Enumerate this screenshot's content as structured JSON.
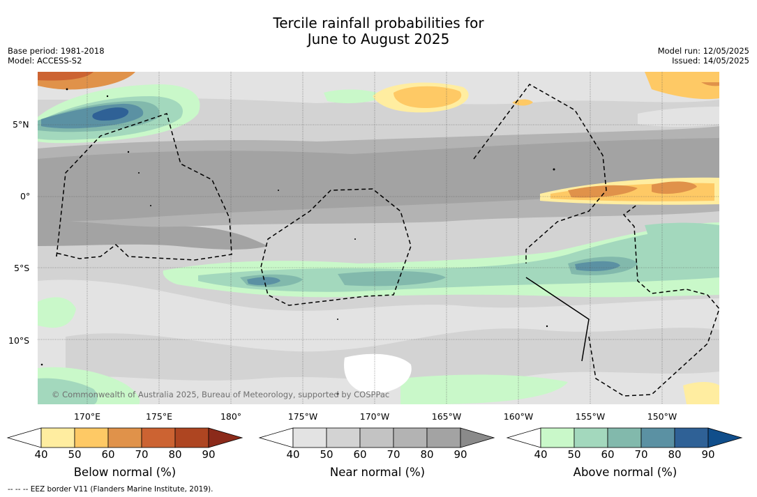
{
  "title_line1": "Tercile rainfall probabilities for",
  "title_line2": "June to August 2025",
  "base_period": "Base period: 1981-2018",
  "model": "Model: ACCESS-S2",
  "model_run": "Model run: 12/05/2025",
  "issued": "Issued: 14/05/2025",
  "lat_labels": [
    "5°N",
    "0°",
    "5°S",
    "10°S"
  ],
  "lon_labels": [
    "170°E",
    "175°E",
    "180°",
    "175°W",
    "170°W",
    "165°W",
    "160°W",
    "155°W",
    "150°W"
  ],
  "copyright": "© Commonwealth of Australia 2025, Bureau of Meteorology, supported by COSPPac",
  "colorbars": [
    {
      "name": "below",
      "title": "Below normal (%)",
      "ticks": [
        "40",
        "50",
        "60",
        "70",
        "80",
        "90"
      ],
      "colors": [
        "#ffffff",
        "#ffeda0",
        "#fec965",
        "#e0924a",
        "#cc6332",
        "#ae4521",
        "#8b2a1a"
      ]
    },
    {
      "name": "near",
      "title": "Near normal (%)",
      "ticks": [
        "40",
        "50",
        "60",
        "70",
        "80",
        "90"
      ],
      "colors": [
        "#ffffff",
        "#e3e3e3",
        "#d3d3d3",
        "#c3c3c3",
        "#b3b3b3",
        "#a3a3a3",
        "#8a8a8a"
      ]
    },
    {
      "name": "above",
      "title": "Above normal (%)",
      "ticks": [
        "40",
        "50",
        "60",
        "70",
        "80",
        "90"
      ],
      "colors": [
        "#ffffff",
        "#c9f8c9",
        "#a3d8bd",
        "#82b9ac",
        "#5b91a3",
        "#2f6196",
        "#104e8b"
      ]
    }
  ],
  "eez_note": "--  --  -- EEZ border V11 (Flanders Marine Institute, 2019)."
}
